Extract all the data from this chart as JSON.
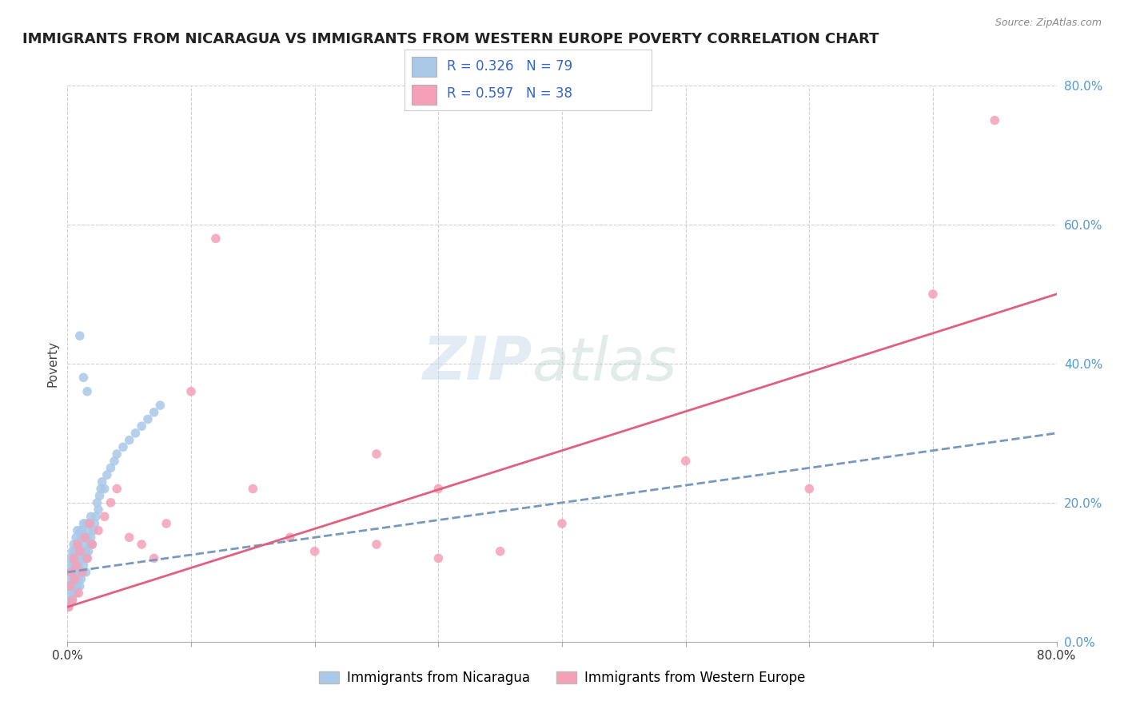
{
  "title": "IMMIGRANTS FROM NICARAGUA VS IMMIGRANTS FROM WESTERN EUROPE POVERTY CORRELATION CHART",
  "source_text": "Source: ZipAtlas.com",
  "ylabel": "Poverty",
  "xlim": [
    0.0,
    0.8
  ],
  "ylim": [
    -0.02,
    0.88
  ],
  "plot_ylim": [
    0.0,
    0.8
  ],
  "xtick_vals": [
    0.0,
    0.1,
    0.2,
    0.3,
    0.4,
    0.5,
    0.6,
    0.7,
    0.8
  ],
  "xtick_labels_shown": [
    "0.0%",
    "",
    "",
    "",
    "",
    "",
    "",
    "",
    "80.0%"
  ],
  "ytick_vals": [
    0.0,
    0.2,
    0.4,
    0.6,
    0.8
  ],
  "ytick_labels": [
    "0.0%",
    "20.0%",
    "40.0%",
    "60.0%",
    "80.0%"
  ],
  "background_color": "#ffffff",
  "grid_color": "#d0d0d0",
  "nicaragua_color": "#aac8e8",
  "western_europe_color": "#f5a0b8",
  "nicaragua_line_color": "#7799bb",
  "western_europe_line_color": "#e06080",
  "nicaragua_R": 0.326,
  "nicaragua_N": 79,
  "western_europe_R": 0.597,
  "western_europe_N": 38,
  "legend_label_1": "Immigrants from Nicaragua",
  "legend_label_2": "Immigrants from Western Europe",
  "watermark": "ZIPatlas",
  "title_fontsize": 13,
  "axis_label_fontsize": 11,
  "tick_fontsize": 11,
  "legend_fontsize": 12,
  "nicaragua_scatter_x": [
    0.001,
    0.001,
    0.002,
    0.002,
    0.002,
    0.003,
    0.003,
    0.003,
    0.004,
    0.004,
    0.004,
    0.005,
    0.005,
    0.005,
    0.005,
    0.006,
    0.006,
    0.006,
    0.007,
    0.007,
    0.007,
    0.007,
    0.008,
    0.008,
    0.008,
    0.008,
    0.009,
    0.009,
    0.009,
    0.01,
    0.01,
    0.01,
    0.01,
    0.011,
    0.011,
    0.011,
    0.012,
    0.012,
    0.012,
    0.013,
    0.013,
    0.013,
    0.014,
    0.014,
    0.015,
    0.015,
    0.015,
    0.016,
    0.016,
    0.017,
    0.017,
    0.018,
    0.018,
    0.019,
    0.019,
    0.02,
    0.021,
    0.022,
    0.023,
    0.024,
    0.025,
    0.026,
    0.027,
    0.028,
    0.03,
    0.032,
    0.035,
    0.038,
    0.04,
    0.045,
    0.05,
    0.055,
    0.06,
    0.065,
    0.07,
    0.075,
    0.01,
    0.013,
    0.016
  ],
  "nicaragua_scatter_y": [
    0.05,
    0.08,
    0.06,
    0.1,
    0.12,
    0.07,
    0.09,
    0.11,
    0.06,
    0.08,
    0.13,
    0.07,
    0.09,
    0.11,
    0.14,
    0.08,
    0.1,
    0.13,
    0.07,
    0.09,
    0.12,
    0.15,
    0.08,
    0.1,
    0.13,
    0.16,
    0.09,
    0.11,
    0.14,
    0.08,
    0.1,
    0.13,
    0.16,
    0.09,
    0.12,
    0.15,
    0.1,
    0.13,
    0.16,
    0.11,
    0.14,
    0.17,
    0.12,
    0.15,
    0.1,
    0.13,
    0.17,
    0.12,
    0.15,
    0.13,
    0.16,
    0.14,
    0.17,
    0.15,
    0.18,
    0.14,
    0.16,
    0.17,
    0.18,
    0.2,
    0.19,
    0.21,
    0.22,
    0.23,
    0.22,
    0.24,
    0.25,
    0.26,
    0.27,
    0.28,
    0.29,
    0.3,
    0.31,
    0.32,
    0.33,
    0.34,
    0.44,
    0.38,
    0.36
  ],
  "western_europe_scatter_x": [
    0.001,
    0.002,
    0.003,
    0.004,
    0.005,
    0.006,
    0.007,
    0.008,
    0.009,
    0.01,
    0.012,
    0.014,
    0.016,
    0.018,
    0.02,
    0.025,
    0.03,
    0.035,
    0.04,
    0.05,
    0.06,
    0.07,
    0.08,
    0.1,
    0.12,
    0.15,
    0.18,
    0.2,
    0.25,
    0.3,
    0.35,
    0.4,
    0.5,
    0.6,
    0.7,
    0.75,
    0.25,
    0.3
  ],
  "western_europe_scatter_y": [
    0.05,
    0.08,
    0.1,
    0.06,
    0.12,
    0.09,
    0.11,
    0.14,
    0.07,
    0.13,
    0.1,
    0.15,
    0.12,
    0.17,
    0.14,
    0.16,
    0.18,
    0.2,
    0.22,
    0.15,
    0.14,
    0.12,
    0.17,
    0.36,
    0.58,
    0.22,
    0.15,
    0.13,
    0.14,
    0.12,
    0.13,
    0.17,
    0.26,
    0.22,
    0.5,
    0.75,
    0.27,
    0.22
  ],
  "nic_line_x0": 0.0,
  "nic_line_y0": 0.1,
  "nic_line_x1": 0.8,
  "nic_line_y1": 0.3,
  "we_line_x0": 0.0,
  "we_line_y0": 0.05,
  "we_line_x1": 0.8,
  "we_line_y1": 0.5
}
